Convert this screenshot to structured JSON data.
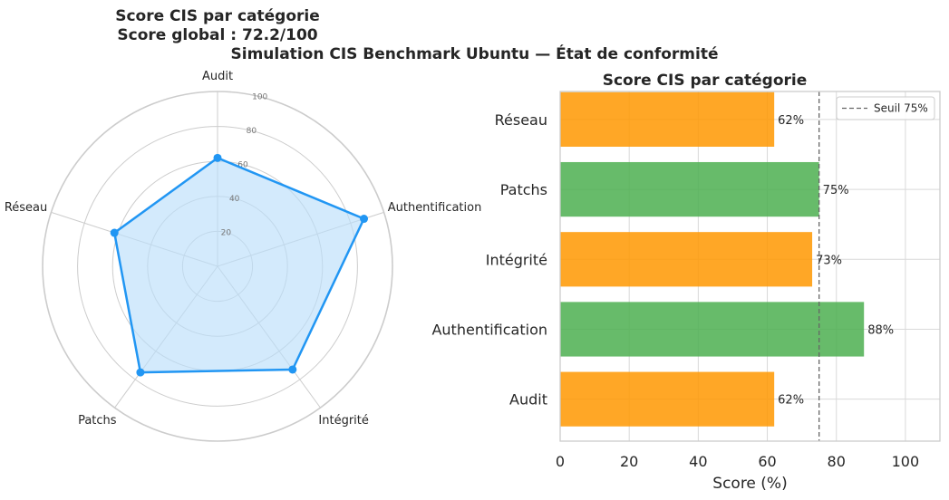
{
  "suptitle": "Simulation CIS Benchmark Ubuntu — État de conformité",
  "chart_data": [
    {
      "type": "radar",
      "title_line1": "Score CIS par catégorie",
      "title_line2": "Score global : 72.2/100",
      "categories": [
        "Audit",
        "Authentification",
        "Intégrité",
        "Patchs",
        "Réseau"
      ],
      "values": [
        62,
        88,
        73,
        75,
        62
      ],
      "rlim": [
        0,
        100
      ],
      "r_ticks": [
        20,
        40,
        60,
        80,
        100
      ],
      "r_tick_labels": [
        "20",
        "40",
        "60",
        "80",
        "100"
      ],
      "color": "#2196f3",
      "fill_color": "#bbdefb"
    },
    {
      "type": "bar",
      "orientation": "horizontal",
      "title": "Score CIS par catégorie",
      "xlabel": "Score (%)",
      "ylabel": "",
      "categories": [
        "Audit",
        "Authentification",
        "Intégrité",
        "Patchs",
        "Réseau"
      ],
      "values": [
        62,
        88,
        73,
        75,
        62
      ],
      "value_labels": [
        "62%",
        "88%",
        "73%",
        "75%",
        "62%"
      ],
      "bar_colors": [
        "#ff9800",
        "#4caf50",
        "#ff9800",
        "#4caf50",
        "#ff9800"
      ],
      "xlim": [
        0,
        110
      ],
      "x_ticks": [
        0,
        20,
        40,
        60,
        80,
        100
      ],
      "x_tick_labels": [
        "0",
        "20",
        "40",
        "60",
        "80",
        "100"
      ],
      "threshold": 75,
      "threshold_label": "Seuil 75%",
      "legend_position": "top-right",
      "grid": true
    }
  ]
}
